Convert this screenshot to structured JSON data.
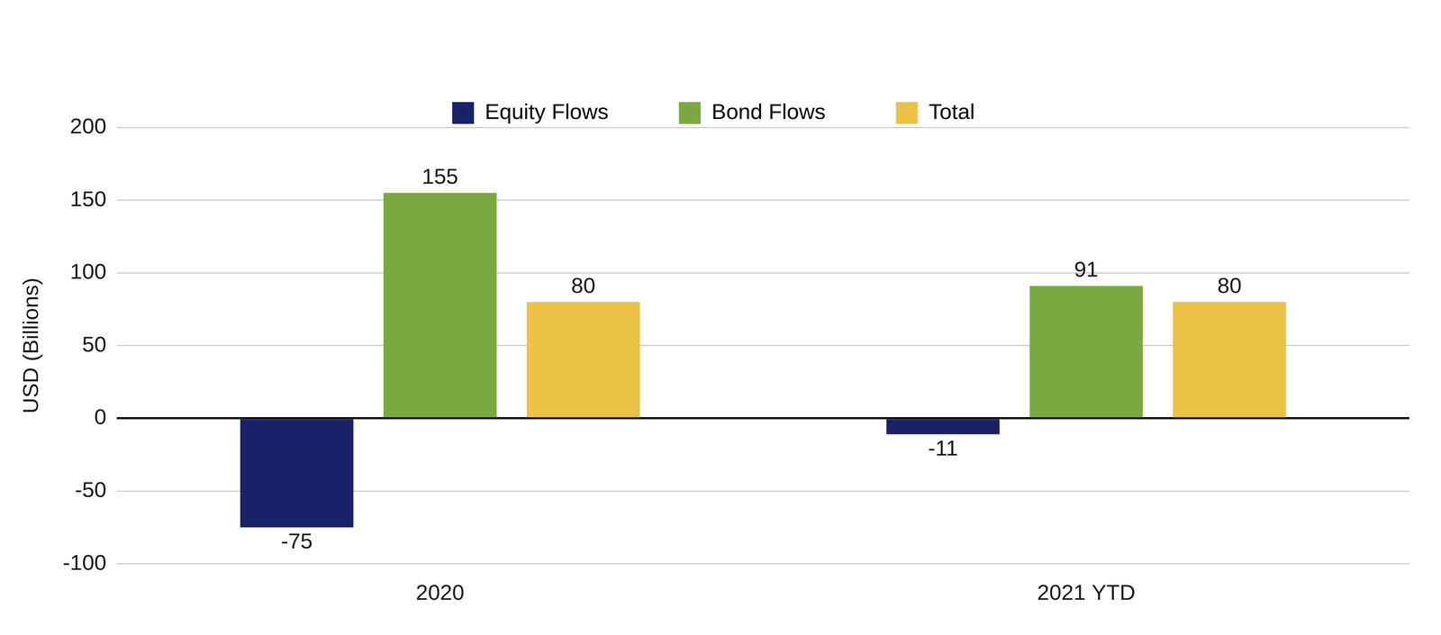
{
  "chart_data": {
    "type": "bar",
    "ylabel": "USD (Billions)",
    "categories": [
      "2020",
      "2021 YTD"
    ],
    "series": [
      {
        "name": "Equity Flows",
        "color": "#182268",
        "values": [
          -75,
          -11
        ]
      },
      {
        "name": "Bond Flows",
        "color": "#7aa942",
        "values": [
          155,
          91
        ]
      },
      {
        "name": "Total",
        "color": "#ecc245",
        "values": [
          80,
          80
        ]
      }
    ],
    "ylim": [
      -100,
      200
    ],
    "yticks": [
      -100,
      -50,
      0,
      50,
      100,
      150,
      200
    ],
    "grid": true,
    "legend": "top",
    "data_labels": true
  }
}
